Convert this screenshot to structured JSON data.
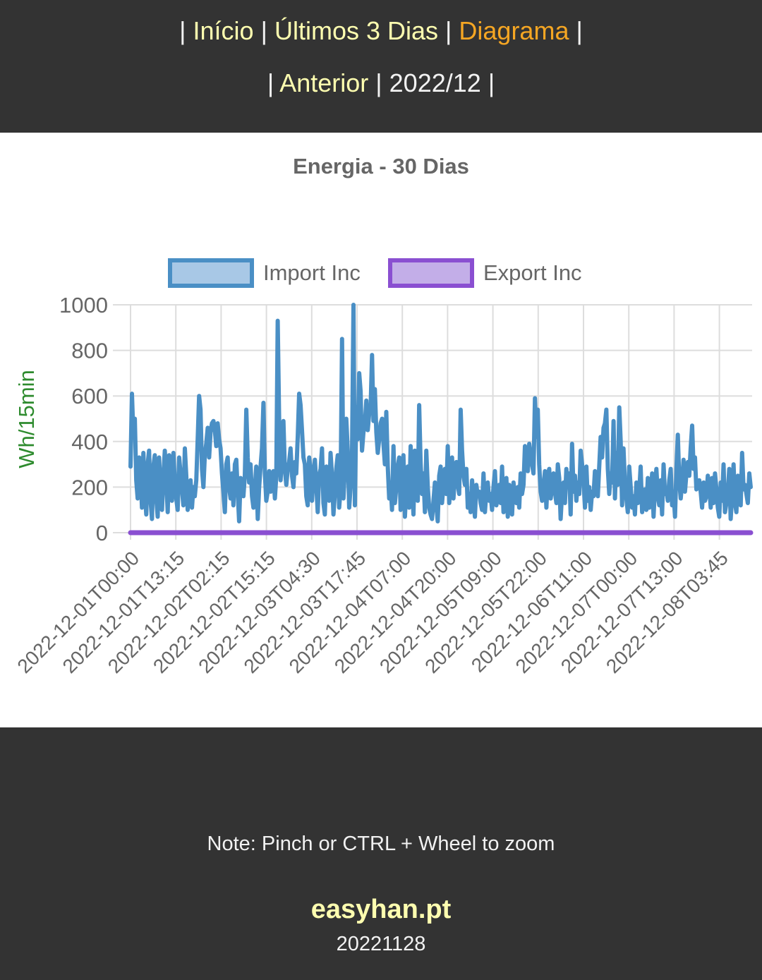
{
  "nav": {
    "row1": [
      {
        "label": "Início",
        "active": false
      },
      {
        "label": "Últimos 3 Dias",
        "active": false
      },
      {
        "label": "Diagrama",
        "active": true
      }
    ],
    "row2": {
      "prev_label": "Anterior",
      "period": "2022/12"
    },
    "separator": "|"
  },
  "colors": {
    "background": "#333333",
    "link": "#ffffb0",
    "active": "#f5a623",
    "import_line": "#4a8fc5",
    "import_fill": "#a8c8e6",
    "export_line": "#8a4fd1",
    "export_fill": "#c3aee8",
    "ylabel": "#2e8b2e"
  },
  "chart_data": {
    "type": "line",
    "title": "Energia - 30 Dias",
    "ylabel": "Wh/15min",
    "xlabel": "",
    "ylim": [
      0,
      1000
    ],
    "yticks": [
      0,
      200,
      400,
      600,
      800,
      1000
    ],
    "grid": true,
    "legend_position": "top-center",
    "x_tick_labels": [
      "2022-12-01T00:00",
      "2022-12-01T13:15",
      "2022-12-02T02:15",
      "2022-12-02T15:15",
      "2022-12-03T04:30",
      "2022-12-03T17:45",
      "2022-12-04T07:00",
      "2022-12-04T20:00",
      "2022-12-05T09:00",
      "2022-12-05T22:00",
      "2022-12-06T11:00",
      "2022-12-07T00:00",
      "2022-12-07T13:00",
      "2022-12-08T03:45"
    ],
    "x_start": "2022-12-01T00:00",
    "interval_minutes": 15,
    "series": [
      {
        "name": "Import Inc",
        "values": [
          290,
          610,
          420,
          500,
          230,
          150,
          330,
          270,
          110,
          350,
          180,
          80,
          300,
          360,
          140,
          60,
          290,
          340,
          150,
          70,
          330,
          190,
          100,
          250,
          360,
          230,
          90,
          340,
          320,
          140,
          350,
          220,
          150,
          100,
          330,
          260,
          190,
          120,
          370,
          250,
          100,
          190,
          230,
          110,
          200,
          160,
          230,
          410,
          600,
          540,
          280,
          200,
          340,
          390,
          460,
          330,
          440,
          480,
          490,
          450,
          380,
          480,
          410,
          370,
          260,
          180,
          90,
          300,
          330,
          200,
          150,
          260,
          120,
          300,
          320,
          180,
          50,
          240,
          200,
          160,
          250,
          540,
          330,
          220,
          300,
          160,
          110,
          190,
          290,
          60,
          200,
          290,
          370,
          570,
          260,
          140,
          180,
          270,
          180,
          240,
          270,
          150,
          250,
          930,
          500,
          230,
          340,
          490,
          280,
          210,
          280,
          310,
          370,
          250,
          200,
          310,
          260,
          420,
          610,
          560,
          450,
          330,
          300,
          160,
          120,
          330,
          280,
          140,
          250,
          320,
          210,
          90,
          250,
          280,
          370,
          130,
          80,
          290,
          270,
          140,
          350,
          250,
          80,
          170,
          280,
          340,
          110,
          190,
          850,
          150,
          280,
          500,
          360,
          110,
          200,
          330,
          1000,
          120,
          550,
          410,
          700,
          620,
          360,
          440,
          480,
          580,
          450,
          520,
          550,
          780,
          490,
          630,
          440,
          350,
          410,
          480,
          500,
          390,
          300,
          530,
          290,
          150,
          220,
          100,
          380,
          130,
          200,
          290,
          330,
          100,
          260,
          340,
          70,
          200,
          290,
          110,
          380,
          220,
          80,
          360,
          210,
          140,
          560,
          310,
          170,
          260,
          90,
          360,
          200,
          110,
          80,
          60,
          140,
          220,
          120,
          50,
          250,
          290,
          130,
          210,
          280,
          170,
          380,
          130,
          220,
          330,
          150,
          260,
          310,
          210,
          170,
          540,
          360,
          250,
          210,
          280,
          110,
          170,
          90,
          230,
          140,
          70,
          210,
          160,
          180,
          130,
          100,
          260,
          90,
          180,
          220,
          140,
          170,
          100,
          200,
          270,
          120,
          160,
          210,
          130,
          290,
          90,
          150,
          240,
          70,
          210,
          180,
          80,
          220,
          160,
          130,
          200,
          110,
          260,
          170,
          210,
          380,
          320,
          270,
          390,
          340,
          300,
          260,
          590,
          420,
          540,
          300,
          180,
          140,
          200,
          270,
          110,
          250,
          280,
          150,
          200,
          260,
          180,
          130,
          300,
          240,
          60,
          180,
          220,
          130,
          280,
          200,
          260,
          80,
          390,
          180,
          250,
          140,
          220,
          170,
          360,
          300,
          230,
          110,
          290,
          140,
          200,
          100,
          180,
          160,
          270,
          210,
          160,
          290,
          420,
          330,
          460,
          480,
          540,
          280,
          170,
          260,
          220,
          490,
          150,
          350,
          210,
          550,
          400,
          120,
          370,
          210,
          150,
          90,
          290,
          200,
          110,
          160,
          80,
          220,
          130,
          180,
          290,
          90,
          140,
          190,
          100,
          240,
          110,
          150,
          260,
          70,
          200,
          280,
          160,
          120,
          230,
          80,
          300,
          170,
          190,
          140,
          230,
          280,
          120,
          180,
          70,
          280,
          430,
          230,
          150,
          220,
          320,
          180,
          260,
          310,
          250,
          370,
          470,
          280,
          330,
          190,
          210,
          230,
          180,
          110,
          220,
          140,
          160,
          250,
          200,
          110,
          240,
          130,
          260,
          190,
          110,
          70,
          220,
          140,
          300,
          90,
          130,
          180,
          280,
          60,
          170,
          300,
          130,
          90,
          250,
          150,
          120,
          350,
          190,
          210,
          170,
          130,
          260,
          200
        ]
      },
      {
        "name": "Export Inc",
        "values": [
          0,
          0
        ]
      }
    ]
  },
  "footer": {
    "note": "Note: Pinch or CTRL + Wheel to zoom",
    "brand": "easyhan.pt",
    "version": "20221128"
  }
}
